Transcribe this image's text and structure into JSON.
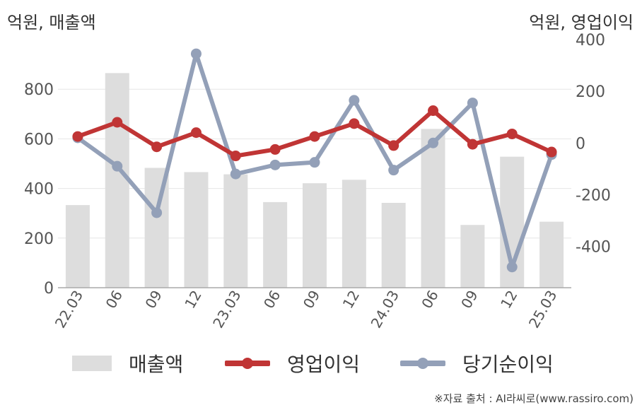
{
  "units": {
    "left": "억원, 매출액",
    "right": "억원, 영업이익"
  },
  "legend": {
    "revenue": "매출액",
    "operating": "영업이익",
    "net": "당기순이익"
  },
  "source": "※자료 출처 : AI라씨로(www.rassiro.com)",
  "colors": {
    "revenue": "#dddddd",
    "operating": "#c03535",
    "net": "#93a0b8",
    "grid": "#e6e6e6",
    "axis": "#aaaaaa"
  },
  "chart_data": {
    "type": "bar+line",
    "categories": [
      "22.03",
      "06",
      "09",
      "12",
      "23.03",
      "06",
      "09",
      "12",
      "24.03",
      "06",
      "09",
      "12",
      "25.03"
    ],
    "left_axis": {
      "label": "억원, 매출액",
      "ylim": [
        0,
        1000
      ],
      "ticks": [
        0,
        200,
        400,
        600,
        800
      ]
    },
    "right_axis": {
      "label": "억원, 영업이익",
      "ylim": [
        -560,
        400
      ],
      "ticks": [
        -400,
        -200,
        0,
        200,
        400
      ]
    },
    "grid": true,
    "legend_position": "bottom",
    "series": [
      {
        "name": "매출액",
        "type": "bar",
        "axis": "left",
        "values": [
          333,
          865,
          483,
          466,
          457,
          345,
          421,
          435,
          342,
          640,
          253,
          528,
          266
        ]
      },
      {
        "name": "영업이익",
        "type": "line",
        "axis": "right",
        "values": [
          25,
          80,
          -15,
          40,
          -50,
          -25,
          25,
          75,
          -10,
          125,
          -5,
          35,
          -35
        ]
      },
      {
        "name": "당기순이익",
        "type": "line",
        "axis": "right",
        "values": [
          20,
          -90,
          -270,
          345,
          -120,
          -85,
          -75,
          165,
          -105,
          0,
          155,
          -480,
          -45
        ]
      }
    ]
  }
}
